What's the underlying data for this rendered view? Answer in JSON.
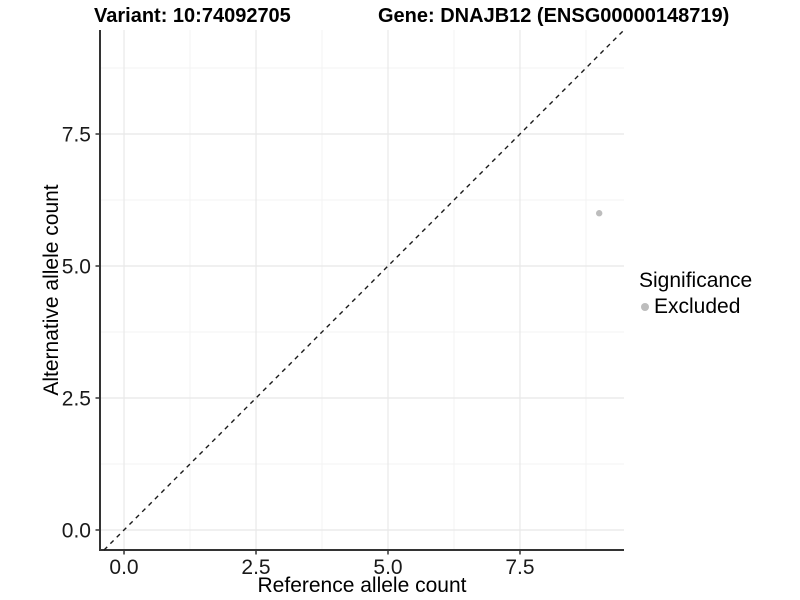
{
  "chart_data": {
    "type": "scatter",
    "title_left": "Variant: 10:74092705",
    "title_right": "Gene: DNAJB12 (ENSG00000148719)",
    "xlabel": "Reference allele count",
    "ylabel": "Alternative allele count",
    "xlim": [
      -0.455,
      9.47
    ],
    "ylim": [
      -0.379,
      9.47
    ],
    "x_ticks": {
      "values": [
        0,
        2.5,
        5,
        7.5
      ],
      "labels": [
        "0.0",
        "2.5",
        "5.0",
        "7.5"
      ]
    },
    "y_ticks": {
      "values": [
        0,
        2.5,
        5,
        7.5
      ],
      "labels": [
        "0.0",
        "2.5",
        "5.0",
        "7.5"
      ]
    },
    "x_minor_ticks": [
      1.25,
      3.75,
      6.25,
      8.75
    ],
    "y_minor_ticks": [
      1.25,
      3.75,
      6.25,
      8.75
    ],
    "grid": {
      "major_color": "#e8e8e8",
      "minor_color": "#f3f3f3"
    },
    "axis_color": "#333333",
    "tick_label_color": "#1a1a1a",
    "reference_line": {
      "type": "identity",
      "slope": 1,
      "intercept": 0,
      "style": "dashed",
      "color": "#1a1a1a"
    },
    "series": [
      {
        "name": "Excluded",
        "color": "#bdbdbd",
        "points": [
          [
            9,
            6
          ]
        ]
      }
    ],
    "legend": {
      "title": "Significance",
      "position": "right",
      "items": [
        {
          "label": "Excluded",
          "color": "#bdbdbd",
          "marker": "circle"
        }
      ]
    }
  }
}
